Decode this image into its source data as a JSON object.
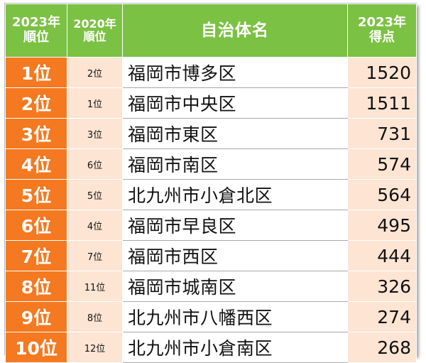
{
  "table": {
    "headers": {
      "rank2023_line1": "2023年",
      "rank2023_line2": "順位",
      "rank2020_line1": "2020年",
      "rank2020_line2": "順位",
      "municipality": "自治体名",
      "score_line1": "2023年",
      "score_line2": "得点"
    },
    "rows": [
      {
        "rank2023": "1位",
        "rank2020": "2位",
        "name": "福岡市博多区",
        "score": "1520"
      },
      {
        "rank2023": "2位",
        "rank2020": "1位",
        "name": "福岡市中央区",
        "score": "1511"
      },
      {
        "rank2023": "3位",
        "rank2020": "3位",
        "name": "福岡市東区",
        "score": "731"
      },
      {
        "rank2023": "4位",
        "rank2020": "6位",
        "name": "福岡市南区",
        "score": "574"
      },
      {
        "rank2023": "5位",
        "rank2020": "5位",
        "name": "北九州市小倉北区",
        "score": "564"
      },
      {
        "rank2023": "6位",
        "rank2020": "4位",
        "name": "福岡市早良区",
        "score": "495"
      },
      {
        "rank2023": "7位",
        "rank2020": "7位",
        "name": "福岡市西区",
        "score": "444"
      },
      {
        "rank2023": "8位",
        "rank2020": "11位",
        "name": "福岡市城南区",
        "score": "326"
      },
      {
        "rank2023": "9位",
        "rank2020": "8位",
        "name": "北九州市八幡西区",
        "score": "274"
      },
      {
        "rank2023": "10位",
        "rank2020": "12位",
        "name": "北九州市小倉南区",
        "score": "268"
      }
    ]
  },
  "colors": {
    "header_green": "#7bc143",
    "rank_orange": "#f47920",
    "light_peach": "#fde4d3"
  }
}
